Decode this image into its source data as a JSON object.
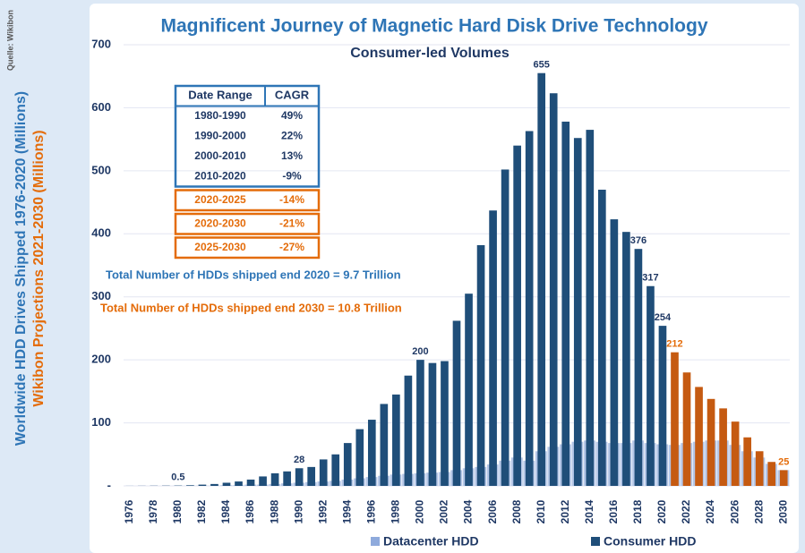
{
  "chart_data": {
    "type": "bar",
    "title": "Magnificent Journey of Magnetic Hard Disk Drive Technology",
    "subtitle": "Consumer-led Volumes",
    "source": "Quelle: Wikibon",
    "y_label": "Worldwide HDD Drives Shipped 1976-2020 (Millions)",
    "y_label_2": "Wikibon Projections 2021-2030 (Millions)",
    "annotations": [
      "Total Number of HDDs shipped end 2020 = 9.7 Trillion",
      "Total Number of HDDs shipped end 2030 = 10.8 Trillion"
    ],
    "annotation_colors": [
      "#2e75b6",
      "#e46c0a"
    ],
    "table": {
      "header": [
        "Date Range",
        "CAGR"
      ],
      "rows": [
        [
          "1980-1990",
          "49%"
        ],
        [
          "1990-2000",
          "22%"
        ],
        [
          "2000-2010",
          "13%"
        ],
        [
          "2010-2020",
          "-9%"
        ],
        [
          "2020-2025",
          "-14%"
        ],
        [
          "2020-2030",
          "-21%"
        ],
        [
          "2025-2030",
          "-27%"
        ]
      ],
      "row_colors": [
        "#1f4e79",
        "#1f4e79",
        "#1f4e79",
        "#1f4e79",
        "#e46c0a",
        "#e46c0a",
        "#e46c0a"
      ]
    },
    "categories": [
      "1976",
      null,
      "1978",
      null,
      "1980",
      null,
      "1982",
      null,
      "1984",
      null,
      "1986",
      null,
      "1988",
      null,
      "1990",
      null,
      "1992",
      null,
      "1994",
      null,
      "1996",
      null,
      "1998",
      null,
      "2000",
      null,
      "2002",
      null,
      "2004",
      null,
      "2006",
      null,
      "2008",
      null,
      "2010",
      null,
      "2012",
      null,
      "2014",
      null,
      "2016",
      null,
      "2018",
      null,
      "2020",
      null,
      "2022",
      null,
      "2024",
      null,
      "2026",
      null,
      "2028",
      null,
      "2030"
    ],
    "series": [
      {
        "name": "Datacenter HDD",
        "color": "#b4c6e7",
        "values": [
          0,
          0,
          0,
          0,
          0.1,
          0.2,
          0.3,
          0.5,
          1,
          1,
          2,
          2,
          3,
          4,
          5,
          6,
          7,
          8,
          10,
          12,
          14,
          16,
          18,
          19,
          20,
          21,
          22,
          25,
          28,
          30,
          34,
          40,
          45,
          40,
          55,
          62,
          66,
          70,
          72,
          70,
          68,
          68,
          72,
          68,
          66,
          65,
          68,
          70,
          72,
          72,
          65,
          55,
          45,
          35,
          25
        ]
      },
      {
        "name": "Consumer HDD",
        "color": "#1f4e79",
        "values": [
          0.1,
          0.2,
          0.3,
          0.4,
          0.5,
          1,
          2,
          3,
          5,
          7,
          10,
          15,
          20,
          23,
          28,
          30,
          42,
          50,
          68,
          90,
          105,
          130,
          145,
          175,
          200,
          195,
          198,
          262,
          305,
          382,
          437,
          502,
          540,
          563,
          655,
          623,
          578,
          552,
          565,
          470,
          423,
          403,
          376,
          317,
          254,
          212,
          180,
          157,
          138,
          123,
          102,
          77,
          55,
          38,
          25
        ],
        "value_labels": [
          null,
          null,
          null,
          null,
          "0.5",
          null,
          null,
          null,
          null,
          null,
          null,
          null,
          null,
          null,
          "28",
          null,
          null,
          null,
          null,
          null,
          null,
          null,
          null,
          null,
          "200",
          null,
          null,
          null,
          null,
          null,
          null,
          null,
          null,
          null,
          "655",
          null,
          null,
          null,
          null,
          null,
          null,
          null,
          "376",
          "317",
          "254",
          "212",
          null,
          null,
          null,
          null,
          null,
          null,
          null,
          null,
          "25"
        ],
        "colors": [
          "#1f4e79",
          "#1f4e79",
          "#1f4e79",
          "#1f4e79",
          "#1f4e79",
          "#1f4e79",
          "#1f4e79",
          "#1f4e79",
          "#1f4e79",
          "#1f4e79",
          "#1f4e79",
          "#1f4e79",
          "#1f4e79",
          "#1f4e79",
          "#1f4e79",
          "#1f4e79",
          "#1f4e79",
          "#1f4e79",
          "#1f4e79",
          "#1f4e79",
          "#1f4e79",
          "#1f4e79",
          "#1f4e79",
          "#1f4e79",
          "#1f4e79",
          "#1f4e79",
          "#1f4e79",
          "#1f4e79",
          "#1f4e79",
          "#1f4e79",
          "#1f4e79",
          "#1f4e79",
          "#1f4e79",
          "#1f4e79",
          "#1f4e79",
          "#1f4e79",
          "#1f4e79",
          "#1f4e79",
          "#1f4e79",
          "#1f4e79",
          "#1f4e79",
          "#1f4e79",
          "#1f4e79",
          "#1f4e79",
          "#1f4e79",
          "#c55a11",
          "#c55a11",
          "#c55a11",
          "#c55a11",
          "#c55a11",
          "#c55a11",
          "#c55a11",
          "#c55a11",
          "#c55a11",
          "#c55a11"
        ]
      }
    ],
    "ylim": [
      0,
      700
    ],
    "yticks": [
      {
        "value": 0,
        "label": "-"
      },
      100,
      200,
      300,
      400,
      500,
      600,
      700
    ],
    "grid": true
  }
}
